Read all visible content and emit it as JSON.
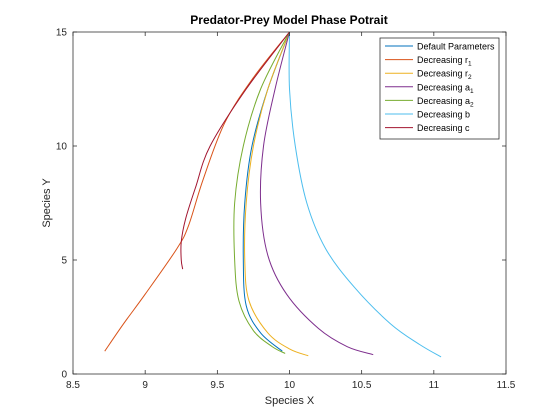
{
  "chart_data": {
    "type": "line",
    "title": "Predator-Prey Model Phase Potrait",
    "xlabel": "Species X",
    "ylabel": "Species Y",
    "xlim": [
      8.5,
      11.5
    ],
    "ylim": [
      0,
      15
    ],
    "xticks": [
      8.5,
      9,
      9.5,
      10,
      10.5,
      11,
      11.5
    ],
    "xtick_labels": [
      "8.5",
      "9",
      "9.5",
      "10",
      "10.5",
      "11",
      "11.5"
    ],
    "yticks": [
      0,
      5,
      10,
      15
    ],
    "ytick_labels": [
      "0",
      "5",
      "10",
      "15"
    ],
    "grid": false,
    "legend_position": "top-right",
    "series": [
      {
        "name": "Default Parameters",
        "label_main": "Default Parameters",
        "label_sub": "",
        "color": "#0072BD",
        "points": [
          [
            10.0,
            15.0
          ],
          [
            9.85,
            12.5
          ],
          [
            9.74,
            10.0
          ],
          [
            9.69,
            7.5
          ],
          [
            9.68,
            5.0
          ],
          [
            9.7,
            3.0
          ],
          [
            9.8,
            1.8
          ],
          [
            9.95,
            1.0
          ]
        ]
      },
      {
        "name": "Decreasing r1",
        "label_main": "Decreasing r",
        "label_sub": "1",
        "color": "#D95319",
        "points": [
          [
            10.0,
            15.0
          ],
          [
            9.75,
            13.0
          ],
          [
            9.55,
            11.0
          ],
          [
            9.4,
            8.5
          ],
          [
            9.3,
            6.5
          ],
          [
            9.22,
            5.5
          ],
          [
            9.0,
            3.5
          ],
          [
            8.85,
            2.2
          ],
          [
            8.72,
            1.0
          ]
        ]
      },
      {
        "name": "Decreasing r2",
        "label_main": "Decreasing r",
        "label_sub": "2",
        "color": "#EDB120",
        "points": [
          [
            10.0,
            15.0
          ],
          [
            9.85,
            12.5
          ],
          [
            9.75,
            10.0
          ],
          [
            9.7,
            7.5
          ],
          [
            9.69,
            5.0
          ],
          [
            9.72,
            3.2
          ],
          [
            9.85,
            1.8
          ],
          [
            10.0,
            1.1
          ],
          [
            10.13,
            0.8
          ]
        ]
      },
      {
        "name": "Decreasing a1",
        "label_main": "Decreasing a",
        "label_sub": "1",
        "color": "#7E2F8E",
        "points": [
          [
            10.0,
            15.0
          ],
          [
            9.9,
            12.5
          ],
          [
            9.82,
            10.0
          ],
          [
            9.8,
            7.5
          ],
          [
            9.85,
            5.2
          ],
          [
            9.98,
            3.5
          ],
          [
            10.2,
            2.0
          ],
          [
            10.4,
            1.2
          ],
          [
            10.58,
            0.85
          ]
        ]
      },
      {
        "name": "Decreasing a2",
        "label_main": "Decreasing a",
        "label_sub": "2",
        "color": "#77AC30",
        "points": [
          [
            10.0,
            15.0
          ],
          [
            9.8,
            12.5
          ],
          [
            9.68,
            10.0
          ],
          [
            9.62,
            7.5
          ],
          [
            9.62,
            5.0
          ],
          [
            9.65,
            3.2
          ],
          [
            9.75,
            1.9
          ],
          [
            9.88,
            1.2
          ],
          [
            9.97,
            0.9
          ]
        ]
      },
      {
        "name": "Decreasing b",
        "label_main": "Decreasing b",
        "label_sub": "",
        "color": "#4DBEEE",
        "points": [
          [
            10.0,
            15.0
          ],
          [
            10.0,
            12.5
          ],
          [
            10.04,
            10.0
          ],
          [
            10.12,
            7.5
          ],
          [
            10.25,
            5.5
          ],
          [
            10.45,
            3.8
          ],
          [
            10.7,
            2.2
          ],
          [
            10.9,
            1.3
          ],
          [
            11.05,
            0.75
          ]
        ]
      },
      {
        "name": "Decreasing c",
        "label_main": "Decreasing c",
        "label_sub": "",
        "color": "#A2142F",
        "points": [
          [
            10.0,
            15.0
          ],
          [
            9.7,
            12.5
          ],
          [
            9.45,
            10.0
          ],
          [
            9.35,
            8.2
          ],
          [
            9.28,
            6.8
          ],
          [
            9.25,
            5.8
          ],
          [
            9.25,
            5.0
          ],
          [
            9.26,
            4.6
          ]
        ]
      }
    ]
  }
}
